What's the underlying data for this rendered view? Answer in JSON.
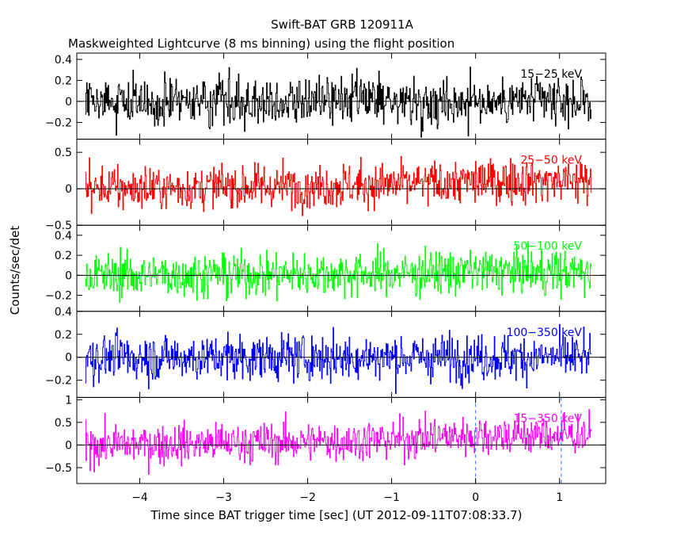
{
  "chart_data": {
    "type": "line",
    "title": "Swift-BAT GRB 120911A",
    "subtitle": "Maskweighted Lightcurve (8 ms binning) using the flight position",
    "xlabel": "Time since BAT trigger time [sec] (UT 2012-09-11T07:08:33.7)",
    "ylabel": "Counts/sec/det",
    "xlim": [
      -4.75,
      1.55
    ],
    "xticks": [
      -4,
      -3,
      -2,
      -1,
      0,
      1
    ],
    "xtick_labels": [
      "−4",
      "−3",
      "−2",
      "−1",
      "0",
      "1"
    ],
    "data_range": [
      -4.65,
      1.38
    ],
    "bin_width_s": 0.008,
    "grid": false,
    "reference_lines": {
      "y": 0,
      "style": "solid",
      "color": "#000000"
    },
    "vertical_markers": {
      "x": [
        0,
        1.02
      ],
      "style": "dashed",
      "color": "#1e78ff"
    },
    "panels": [
      {
        "name": "15−25 keV",
        "color": "#000000",
        "ylim": [
          -0.36,
          0.46
        ],
        "yticks": [
          -0.2,
          0,
          0.2,
          0.4
        ],
        "ytick_labels": [
          "−0.2",
          "0",
          "0.2",
          "0.4"
        ],
        "noise_sigma": 0.11,
        "baseline": [
          [
            -4.65,
            0.0
          ],
          [
            0.0,
            0.0
          ],
          [
            1.38,
            0.0
          ]
        ]
      },
      {
        "name": "25−50 keV",
        "color": "#ff0000",
        "ylim": [
          -0.5,
          0.68
        ],
        "yticks": [
          -0.5,
          0,
          0.5
        ],
        "ytick_labels": [
          "−0.5",
          "0",
          "0.5"
        ],
        "noise_sigma": 0.15,
        "baseline": [
          [
            -4.65,
            0.0
          ],
          [
            -2.0,
            0.04
          ],
          [
            -0.5,
            0.07
          ],
          [
            0.0,
            0.1
          ],
          [
            1.38,
            0.12
          ]
        ]
      },
      {
        "name": "50−100 keV",
        "color": "#00ff00",
        "ylim": [
          -0.36,
          0.5
        ],
        "yticks": [
          -0.2,
          0,
          0.2,
          0.4
        ],
        "ytick_labels": [
          "−0.2",
          "0",
          "0.2",
          "0.4"
        ],
        "noise_sigma": 0.11,
        "baseline": [
          [
            -4.65,
            0.0
          ],
          [
            -1.0,
            0.02
          ],
          [
            0.0,
            0.04
          ],
          [
            1.38,
            0.03
          ]
        ]
      },
      {
        "name": "100−350 keV",
        "color": "#0000ff",
        "ylim": [
          -0.35,
          0.4
        ],
        "yticks": [
          -0.2,
          0,
          0.2,
          0.4
        ],
        "ytick_labels": [
          "−0.2",
          "0",
          "0.2",
          "0.4"
        ],
        "noise_sigma": 0.1,
        "baseline": [
          [
            -4.65,
            0.0
          ],
          [
            1.38,
            0.0
          ]
        ]
      },
      {
        "name": "15−350 keV",
        "color": "#ff00ff",
        "ylim": [
          -0.85,
          1.05
        ],
        "yticks": [
          -0.5,
          0,
          0.5,
          1
        ],
        "ytick_labels": [
          "−0.5",
          "0",
          "0.5",
          "1"
        ],
        "noise_sigma": 0.22,
        "baseline": [
          [
            -4.65,
            0.0
          ],
          [
            -2.0,
            0.07
          ],
          [
            -1.0,
            0.12
          ],
          [
            0.0,
            0.22
          ],
          [
            1.38,
            0.22
          ]
        ]
      }
    ]
  }
}
